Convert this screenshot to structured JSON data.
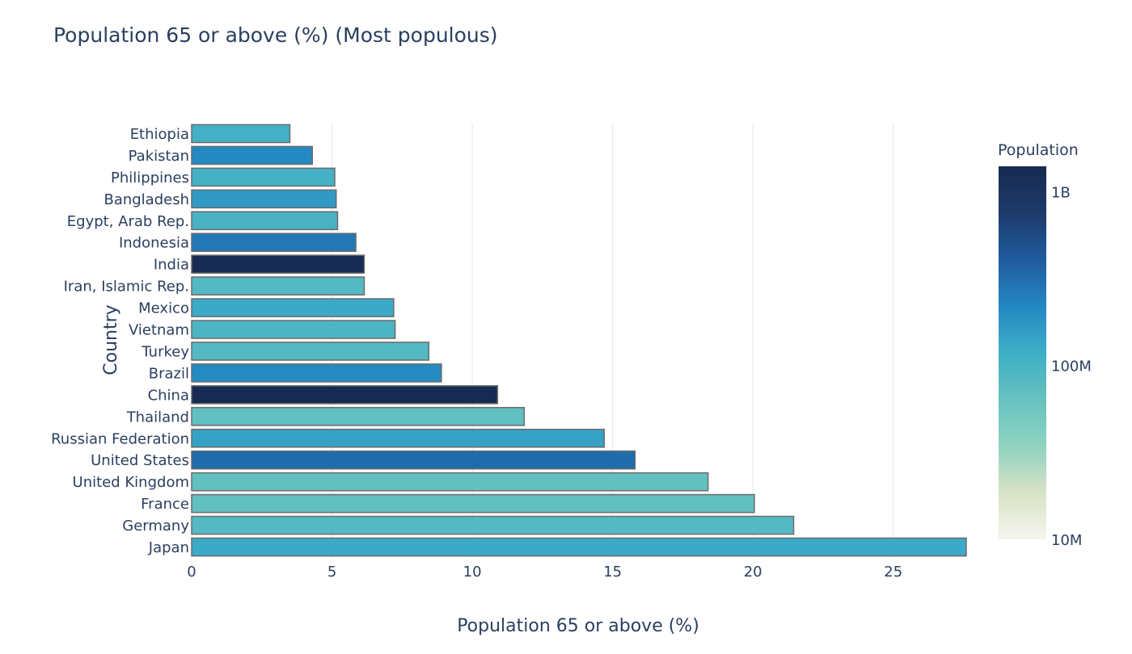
{
  "chart_data": {
    "type": "bar",
    "orientation": "horizontal",
    "title": "Population 65 or above (%) (Most populous)",
    "xlabel": "Population 65 or above (%)",
    "ylabel": "Country",
    "xlim": [
      0,
      27.6
    ],
    "x_ticks": [
      0,
      5,
      10,
      15,
      20,
      25
    ],
    "grid": "vertical",
    "categories": [
      "Ethiopia",
      "Pakistan",
      "Philippines",
      "Bangladesh",
      "Egypt, Arab Rep.",
      "Indonesia",
      "India",
      "Iran, Islamic Rep.",
      "Mexico",
      "Vietnam",
      "Turkey",
      "Brazil",
      "China",
      "Thailand",
      "Russian Federation",
      "United States",
      "United Kingdom",
      "France",
      "Germany",
      "Japan"
    ],
    "values": [
      3.5,
      4.3,
      5.1,
      5.15,
      5.2,
      5.85,
      6.15,
      6.15,
      7.2,
      7.25,
      8.45,
      8.9,
      10.9,
      11.85,
      14.7,
      15.8,
      18.4,
      20.05,
      21.45,
      27.6
    ],
    "population": [
      110000000,
      215000000,
      108000000,
      163000000,
      100000000,
      270000000,
      1366000000,
      83000000,
      127000000,
      96000000,
      83000000,
      211000000,
      1398000000,
      69000000,
      144000000,
      328000000,
      67000000,
      67000000,
      83000000,
      126000000
    ],
    "colorbar": {
      "title": "Population",
      "scale": "log",
      "range": [
        10000000,
        1400000000
      ],
      "ticks": [
        {
          "value": 1000000000,
          "label": "1B"
        },
        {
          "value": 100000000,
          "label": "100M"
        },
        {
          "value": 10000000,
          "label": "10M"
        }
      ],
      "colorscale": [
        "#f5f5ee",
        "#d7e3c6",
        "#8fd2c0",
        "#66c2c0",
        "#3eaec6",
        "#2388c2",
        "#1f5b9e",
        "#1e3a6a",
        "#172a51"
      ]
    }
  }
}
